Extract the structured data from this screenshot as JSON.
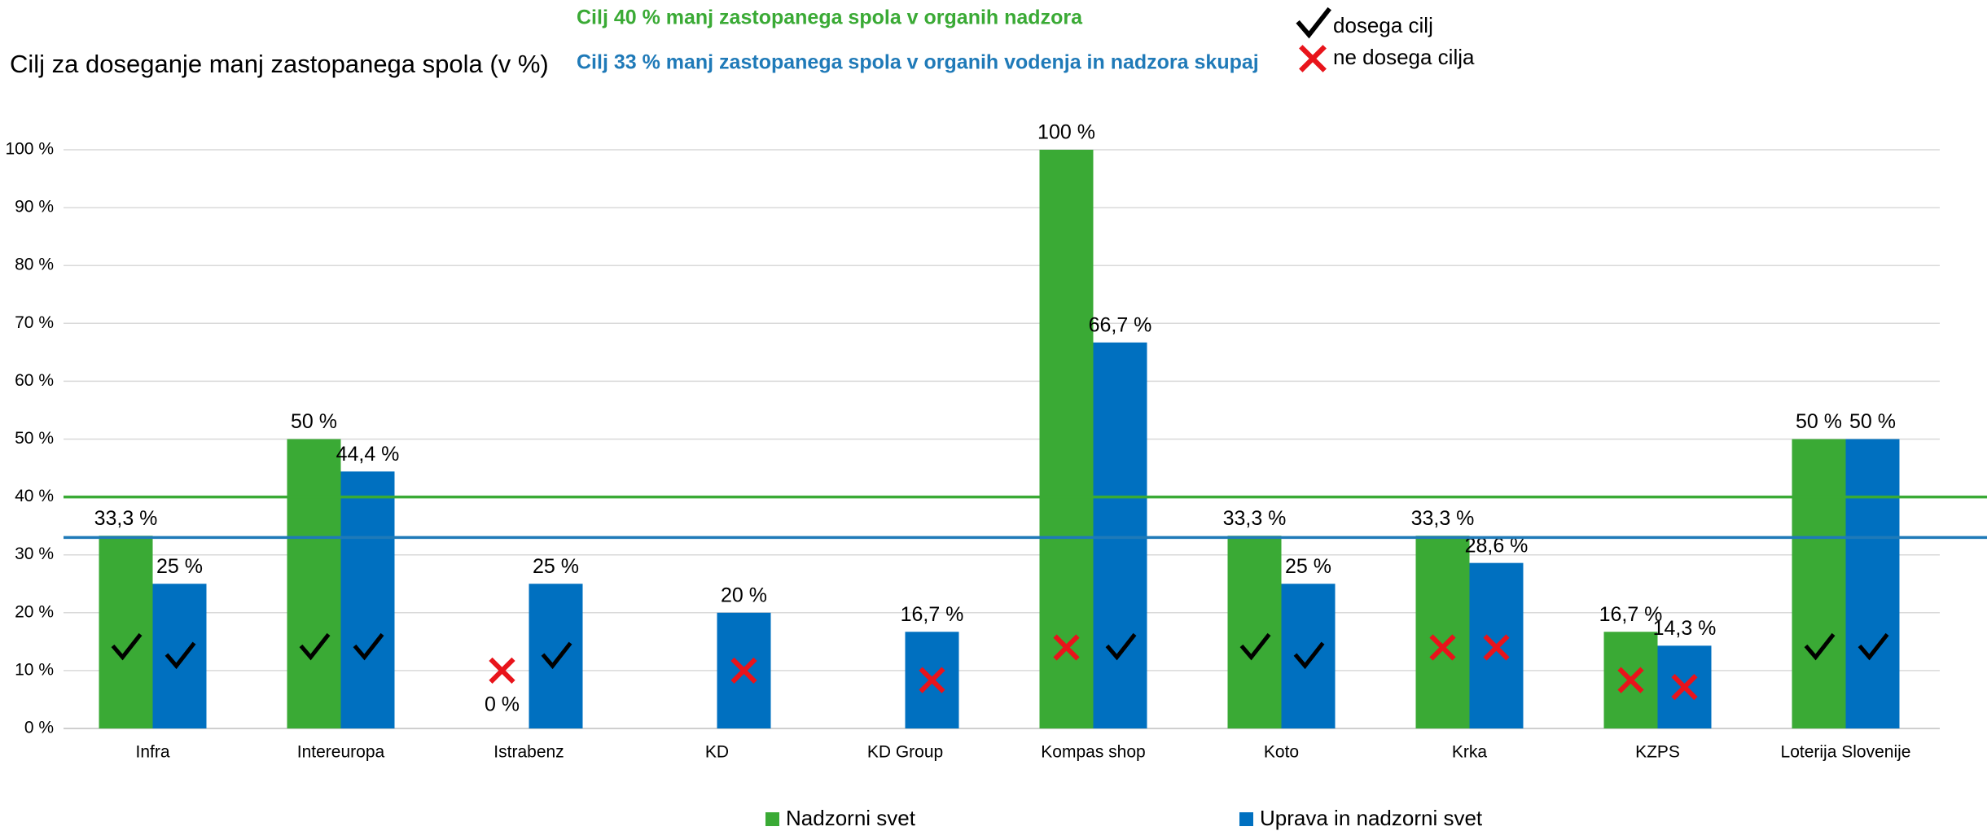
{
  "chart_data": {
    "type": "bar",
    "title": "Cilj za doseganje manj zastopanega spola (v %)",
    "categories": [
      "Infra",
      "Intereuropa",
      "Istrabenz",
      "KD",
      "KD Group",
      "Kompas shop",
      "Koto",
      "Krka",
      "KZPS",
      "Loterija Slovenije"
    ],
    "series": [
      {
        "name": "Nadzorni svet",
        "color": "#3aaa35",
        "values": [
          33.3,
          50,
          0,
          null,
          null,
          100,
          33.3,
          33.3,
          16.7,
          50
        ],
        "value_labels": [
          "33,3 %",
          "50 %",
          "0 %",
          null,
          null,
          "100 %",
          "33,3 %",
          "33,3 %",
          "16,7 %",
          "50 %"
        ],
        "status": [
          "check",
          "check",
          "cross",
          null,
          null,
          "cross",
          "check",
          "cross",
          "cross",
          "check"
        ]
      },
      {
        "name": "Uprava in nadzorni svet",
        "color": "#0070c0",
        "values": [
          25,
          44.4,
          25,
          20,
          16.7,
          66.7,
          25,
          28.6,
          14.3,
          50
        ],
        "value_labels": [
          "25 %",
          "44,4 %",
          "25 %",
          "20 %",
          "16,7 %",
          "66,7 %",
          "25 %",
          "28,6 %",
          "14,3 %",
          "50 %"
        ],
        "status": [
          "check",
          "check",
          "check",
          "cross",
          "cross",
          "check",
          "check",
          "cross",
          "cross",
          "check"
        ]
      }
    ],
    "reference_lines": [
      {
        "value": 40,
        "label": "Cilj 40 % manj zastopanega spola v organih nadzora",
        "color": "#3aaa35"
      },
      {
        "value": 33,
        "label": "Cilj 33 % manj zastopanega spola v  organih vodenja in nadzora skupaj",
        "color": "#1f7ab8"
      }
    ],
    "status_legend": {
      "check": "dosega cilj",
      "cross": "ne dosega cilja"
    },
    "ylim": [
      0,
      100
    ],
    "yticks": [
      {
        "value": 0,
        "label": "0 %"
      },
      {
        "value": 10,
        "label": "10 %"
      },
      {
        "value": 20,
        "label": "20 %"
      },
      {
        "value": 30,
        "label": "30 %"
      },
      {
        "value": 40,
        "label": "40 %"
      },
      {
        "value": 50,
        "label": "50 %"
      },
      {
        "value": 60,
        "label": "60 %"
      },
      {
        "value": 70,
        "label": "70 %"
      },
      {
        "value": 80,
        "label": "80 %"
      },
      {
        "value": 90,
        "label": "90 %"
      },
      {
        "value": 100,
        "label": "100 %"
      }
    ],
    "grid": true,
    "legend": "bottom"
  }
}
